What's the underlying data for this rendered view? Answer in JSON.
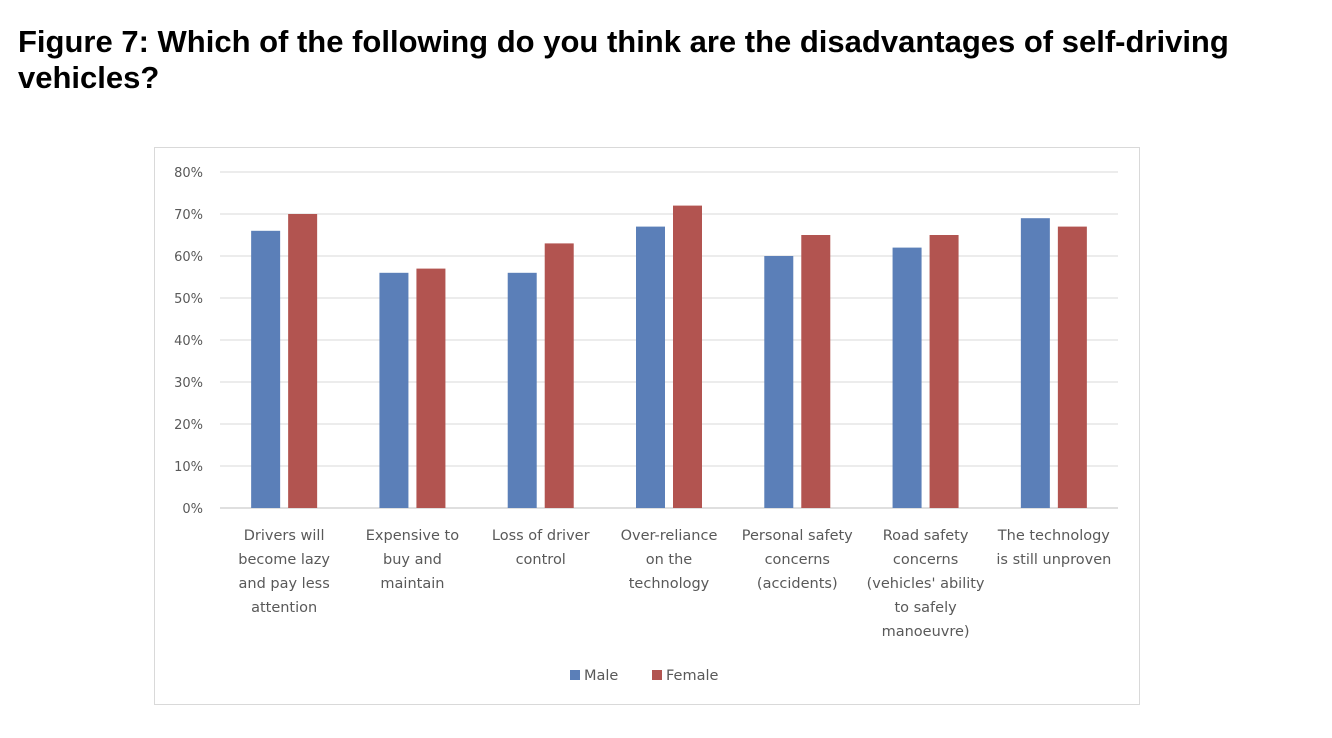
{
  "title": "Figure 7: Which of the following do you think are the disadvantages of self-driving vehicles?",
  "chart_data": {
    "type": "bar",
    "title": "Figure 7: Which of the following do you think are the disadvantages of self-driving vehicles?",
    "xlabel": "",
    "ylabel": "",
    "ylim": [
      0,
      0.8
    ],
    "yticks": [
      "0%",
      "10%",
      "20%",
      "30%",
      "40%",
      "50%",
      "60%",
      "70%",
      "80%"
    ],
    "grid": true,
    "legend_position": "bottom",
    "categories": [
      [
        "Drivers will",
        "become lazy",
        "and pay less",
        "attention"
      ],
      [
        "Expensive to",
        "buy and",
        "maintain"
      ],
      [
        "Loss of driver",
        "control"
      ],
      [
        "Over-reliance",
        "on the",
        "technology"
      ],
      [
        "Personal safety",
        "concerns",
        "(accidents)"
      ],
      [
        "Road safety",
        "concerns",
        "(vehicles' ability",
        "to safely",
        "manoeuvre)"
      ],
      [
        "The technology",
        "is still unproven"
      ]
    ],
    "series": [
      {
        "name": "Male",
        "color": "#5b7fb8",
        "values": [
          0.66,
          0.56,
          0.56,
          0.67,
          0.6,
          0.62,
          0.69
        ]
      },
      {
        "name": "Female",
        "color": "#b25450",
        "values": [
          0.7,
          0.57,
          0.63,
          0.72,
          0.65,
          0.65,
          0.67
        ]
      }
    ]
  }
}
